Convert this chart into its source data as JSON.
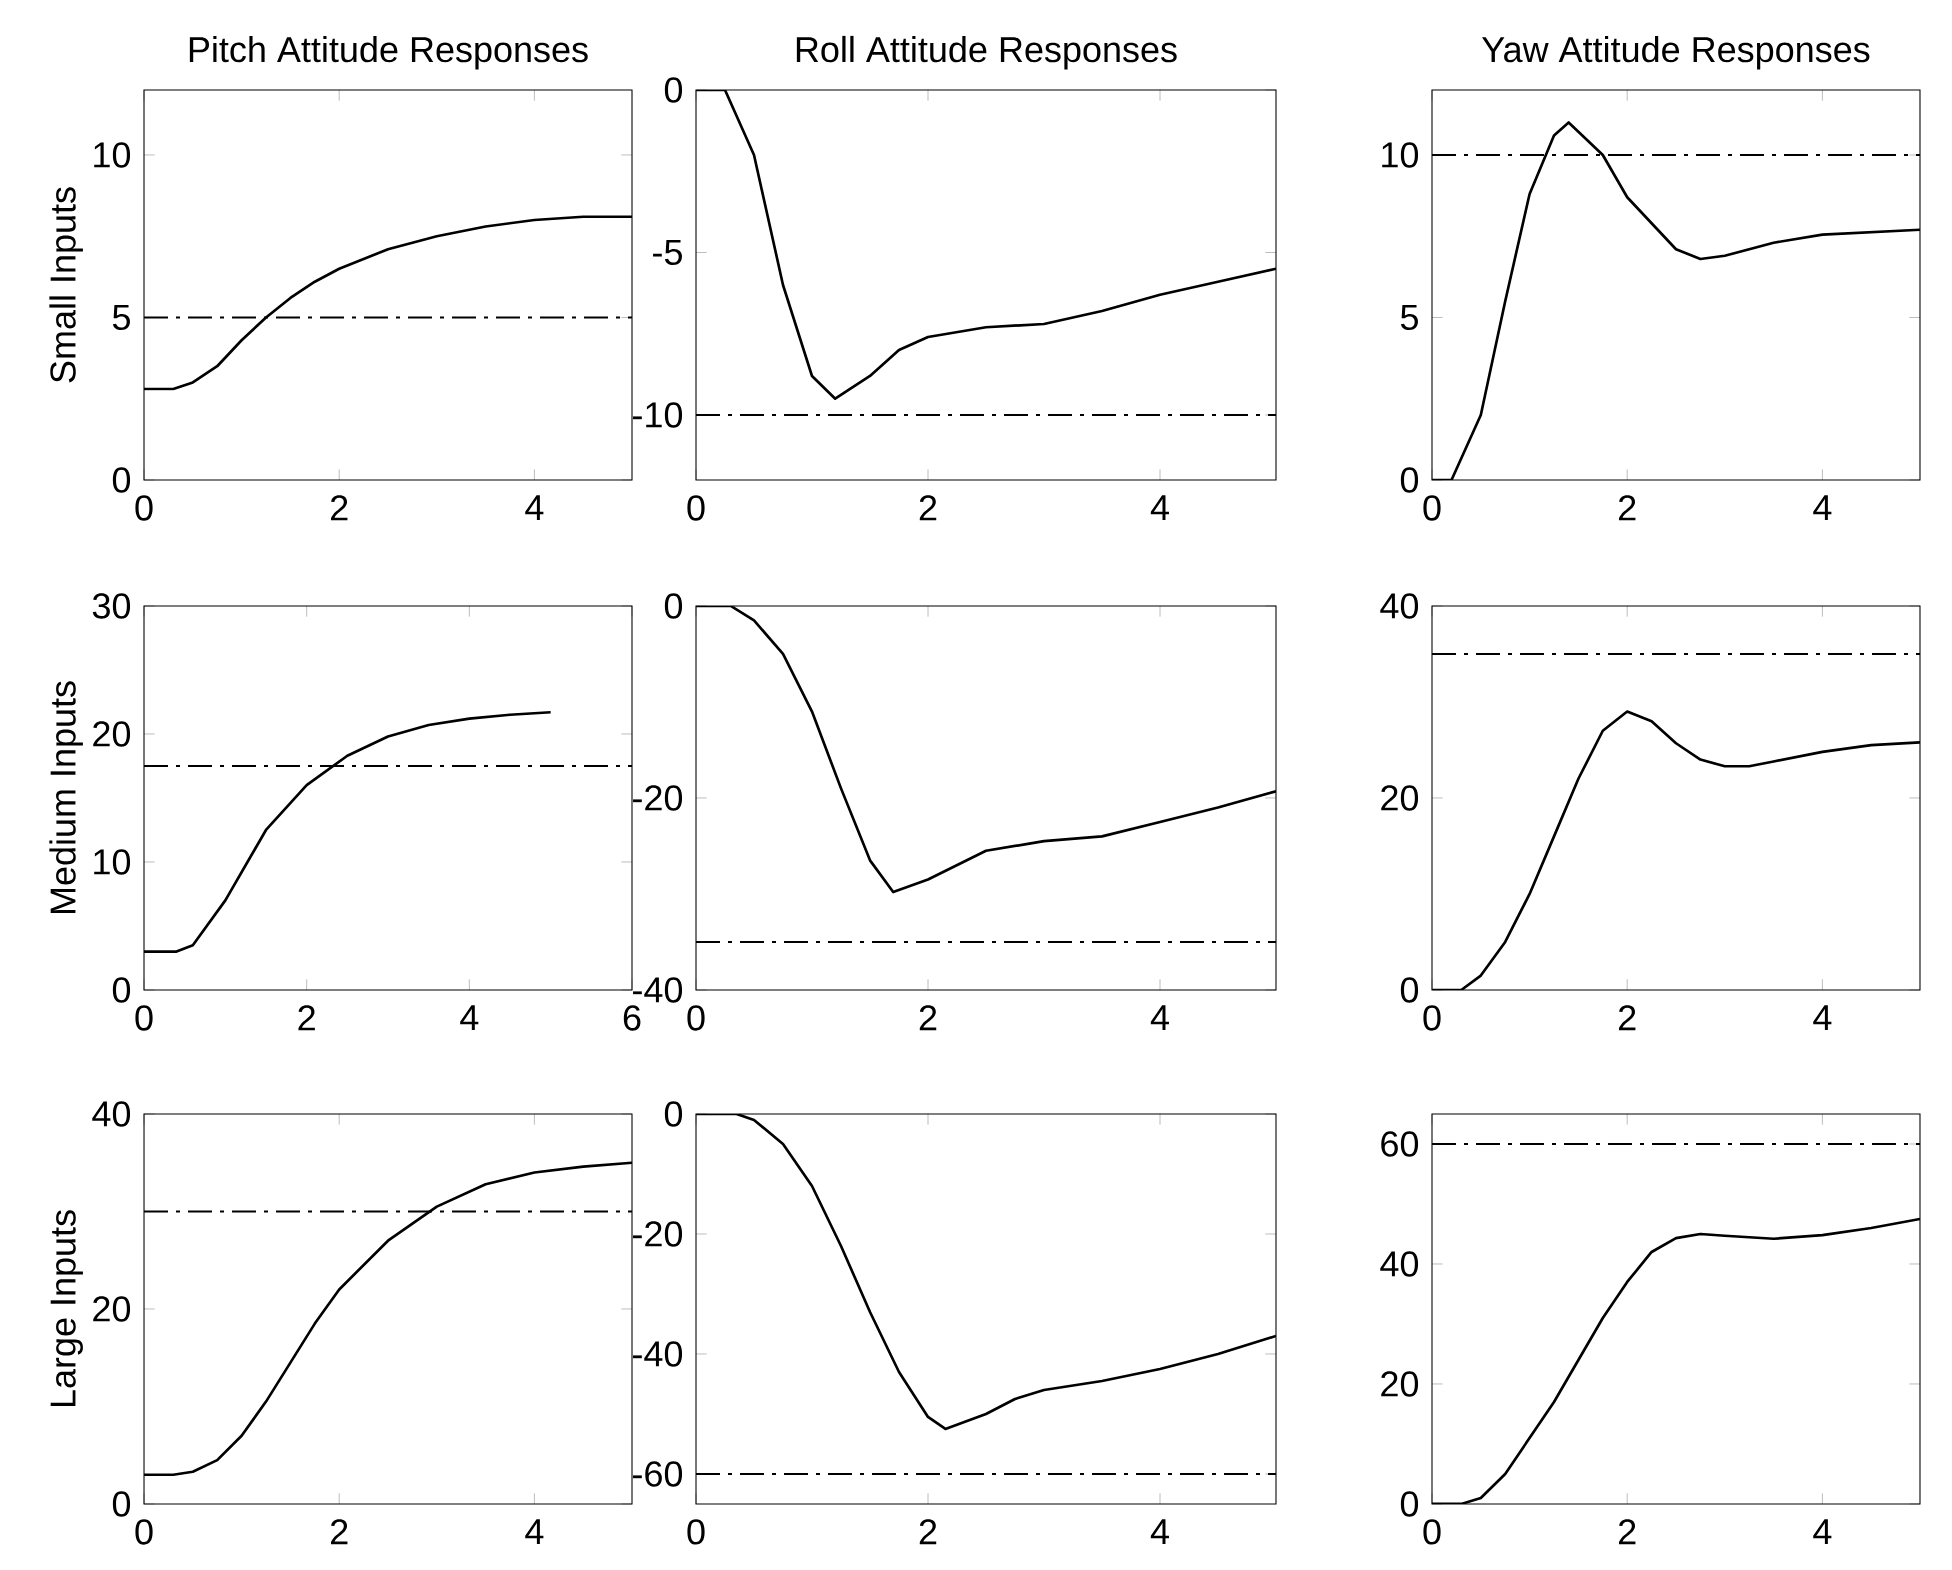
{
  "chart_data": [
    {
      "type": "line",
      "title": "Pitch Attitude Responses",
      "ylabel": "Small Inputs",
      "xlim": [
        0,
        5
      ],
      "ylim": [
        0,
        12
      ],
      "xticks": [
        0,
        2,
        4
      ],
      "yticks": [
        0,
        5,
        10
      ],
      "grid": false,
      "series": [
        {
          "color": "#000000",
          "x": [
            0,
            0.3,
            0.5,
            0.75,
            1,
            1.25,
            1.5,
            1.75,
            2,
            2.5,
            3,
            3.5,
            4,
            4.5,
            5
          ],
          "values": [
            2.8,
            2.8,
            3.0,
            3.5,
            4.3,
            5.0,
            5.6,
            6.1,
            6.5,
            7.1,
            7.5,
            7.8,
            8.0,
            8.1,
            8.1
          ]
        }
      ],
      "ref_lines": [
        {
          "axis": "y",
          "value": 5,
          "line_style": "dashdot",
          "color": "#000000"
        }
      ]
    },
    {
      "type": "line",
      "title": "Roll Attitude Responses",
      "xlim": [
        0,
        5
      ],
      "ylim": [
        -12,
        0
      ],
      "xticks": [
        0,
        2,
        4
      ],
      "yticks": [
        -10,
        -5,
        0
      ],
      "grid": false,
      "series": [
        {
          "color": "#000000",
          "x": [
            0,
            0.25,
            0.5,
            0.75,
            1,
            1.2,
            1.5,
            1.75,
            2,
            2.5,
            3,
            3.5,
            4,
            4.5,
            5
          ],
          "values": [
            0,
            0,
            -2,
            -6,
            -8.8,
            -9.5,
            -8.8,
            -8.0,
            -7.6,
            -7.3,
            -7.2,
            -6.8,
            -6.3,
            -5.9,
            -5.5
          ]
        }
      ],
      "ref_lines": [
        {
          "axis": "y",
          "value": -10,
          "line_style": "dashdot",
          "color": "#000000"
        }
      ]
    },
    {
      "type": "line",
      "title": "Yaw Attitude Responses",
      "xlim": [
        0,
        5
      ],
      "ylim": [
        0,
        12
      ],
      "xticks": [
        0,
        2,
        4
      ],
      "yticks": [
        0,
        5,
        10
      ],
      "grid": false,
      "series": [
        {
          "color": "#000000",
          "x": [
            0,
            0.2,
            0.5,
            0.75,
            1,
            1.25,
            1.4,
            1.75,
            2,
            2.5,
            2.75,
            3,
            3.5,
            4,
            5
          ],
          "values": [
            0,
            0,
            2,
            5.5,
            8.8,
            10.6,
            11.0,
            10,
            8.7,
            7.1,
            6.8,
            6.9,
            7.3,
            7.55,
            7.7
          ]
        }
      ],
      "ref_lines": [
        {
          "axis": "y",
          "value": 10,
          "line_style": "dashdot",
          "color": "#000000"
        }
      ]
    },
    {
      "type": "line",
      "ylabel": "Medium Inputs",
      "xlim": [
        0,
        6
      ],
      "ylim": [
        0,
        30
      ],
      "xticks": [
        0,
        2,
        4,
        6
      ],
      "yticks": [
        0,
        10,
        20,
        30
      ],
      "grid": false,
      "series": [
        {
          "color": "#000000",
          "x": [
            0,
            0.4,
            0.6,
            1,
            1.5,
            2,
            2.5,
            3,
            3.5,
            4,
            4.5,
            5
          ],
          "values": [
            3,
            3,
            3.5,
            7,
            12.5,
            16,
            18.3,
            19.8,
            20.7,
            21.2,
            21.5,
            21.7
          ]
        }
      ],
      "ref_lines": [
        {
          "axis": "y",
          "value": 17.5,
          "line_style": "dashdot",
          "color": "#000000"
        }
      ]
    },
    {
      "type": "line",
      "xlim": [
        0,
        5
      ],
      "ylim": [
        -40,
        0
      ],
      "xticks": [
        0,
        2,
        4
      ],
      "yticks": [
        -40,
        -20,
        0
      ],
      "grid": false,
      "series": [
        {
          "color": "#000000",
          "x": [
            0,
            0.3,
            0.5,
            0.75,
            1,
            1.25,
            1.5,
            1.7,
            2,
            2.5,
            3,
            3.5,
            4,
            4.5,
            5
          ],
          "values": [
            0,
            0,
            -1.5,
            -5,
            -11,
            -19,
            -26.5,
            -29.8,
            -28.5,
            -25.5,
            -24.5,
            -24,
            -22.5,
            -21,
            -19.3
          ]
        }
      ],
      "ref_lines": [
        {
          "axis": "y",
          "value": -35,
          "line_style": "dashdot",
          "color": "#000000"
        }
      ]
    },
    {
      "type": "line",
      "xlim": [
        0,
        5
      ],
      "ylim": [
        0,
        40
      ],
      "xticks": [
        0,
        2,
        4
      ],
      "yticks": [
        0,
        20,
        40
      ],
      "grid": false,
      "series": [
        {
          "color": "#000000",
          "x": [
            0,
            0.3,
            0.5,
            0.75,
            1,
            1.25,
            1.5,
            1.75,
            2,
            2.25,
            2.5,
            2.75,
            3,
            3.25,
            3.5,
            4,
            4.5,
            5
          ],
          "values": [
            0,
            0,
            1.5,
            5,
            10,
            16,
            22,
            27,
            29,
            28,
            25.7,
            24,
            23.3,
            23.3,
            23.8,
            24.8,
            25.5,
            25.8
          ]
        }
      ],
      "ref_lines": [
        {
          "axis": "y",
          "value": 35,
          "line_style": "dashdot",
          "color": "#000000"
        }
      ]
    },
    {
      "type": "line",
      "ylabel": "Large Inputs",
      "xlim": [
        0,
        5
      ],
      "ylim": [
        0,
        40
      ],
      "xticks": [
        0,
        2,
        4
      ],
      "yticks": [
        0,
        20,
        40
      ],
      "grid": false,
      "series": [
        {
          "color": "#000000",
          "x": [
            0,
            0.3,
            0.5,
            0.75,
            1,
            1.25,
            1.5,
            1.75,
            2,
            2.5,
            3,
            3.5,
            4,
            4.5,
            5
          ],
          "values": [
            3,
            3,
            3.3,
            4.5,
            7,
            10.5,
            14.5,
            18.5,
            22,
            27,
            30.5,
            32.8,
            34,
            34.6,
            35
          ]
        }
      ],
      "ref_lines": [
        {
          "axis": "y",
          "value": 30,
          "line_style": "dashdot",
          "color": "#000000"
        }
      ]
    },
    {
      "type": "line",
      "xlim": [
        0,
        5
      ],
      "ylim": [
        -65,
        0
      ],
      "xticks": [
        0,
        2,
        4
      ],
      "yticks": [
        -60,
        -40,
        -20,
        0
      ],
      "grid": false,
      "series": [
        {
          "color": "#000000",
          "x": [
            0,
            0.35,
            0.5,
            0.75,
            1,
            1.25,
            1.5,
            1.75,
            2,
            2.15,
            2.5,
            2.75,
            3,
            3.5,
            4,
            4.5,
            5
          ],
          "values": [
            0,
            0,
            -1,
            -5,
            -12,
            -22,
            -33,
            -43,
            -50.5,
            -52.5,
            -50,
            -47.5,
            -46,
            -44.5,
            -42.5,
            -40,
            -37
          ]
        }
      ],
      "ref_lines": [
        {
          "axis": "y",
          "value": -60,
          "line_style": "dashdot",
          "color": "#000000"
        }
      ]
    },
    {
      "type": "line",
      "xlim": [
        0,
        5
      ],
      "ylim": [
        0,
        65
      ],
      "xticks": [
        0,
        2,
        4
      ],
      "yticks": [
        0,
        20,
        40,
        60
      ],
      "grid": false,
      "series": [
        {
          "color": "#000000",
          "x": [
            0,
            0.3,
            0.5,
            0.75,
            1,
            1.25,
            1.5,
            1.75,
            2,
            2.25,
            2.5,
            2.75,
            3,
            3.5,
            4,
            4.5,
            5
          ],
          "values": [
            0,
            0,
            1,
            5,
            11,
            17,
            24,
            31,
            37,
            42,
            44.3,
            45,
            44.7,
            44.2,
            44.8,
            46,
            47.5
          ]
        }
      ],
      "ref_lines": [
        {
          "axis": "y",
          "value": 60,
          "line_style": "dashdot",
          "color": "#000000"
        }
      ]
    }
  ]
}
